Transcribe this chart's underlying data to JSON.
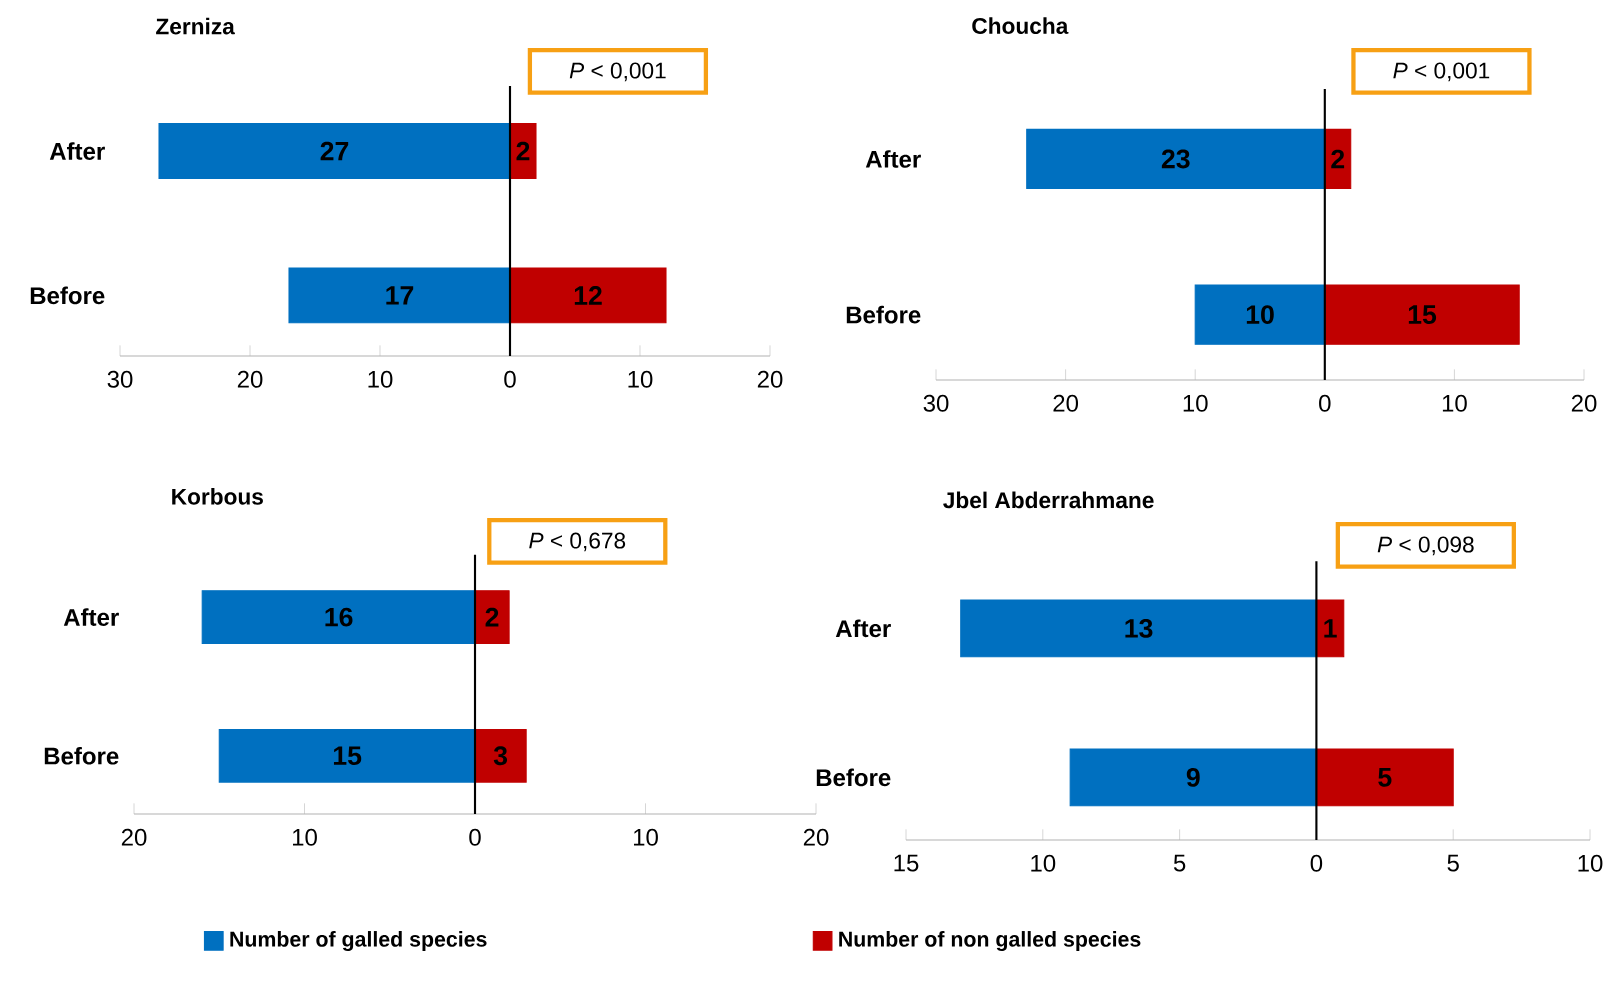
{
  "chart_data": [
    {
      "type": "bar",
      "orientation": "horizontal",
      "title": "Zerniza",
      "categories": [
        "After",
        "Before"
      ],
      "series": [
        {
          "color": "#0070c0",
          "values": [
            27,
            17
          ],
          "base": [
            -27,
            -17
          ],
          "value_labels": [
            "27",
            "17"
          ]
        },
        {
          "color": "#c00000",
          "values": [
            2,
            12
          ],
          "base": [
            0,
            0
          ],
          "value_labels": [
            "2",
            "12"
          ]
        }
      ],
      "xlim": [
        -30,
        20
      ],
      "xticks": [
        {
          "value": -30,
          "label": "30"
        },
        {
          "value": -20,
          "label": "20"
        },
        {
          "value": -10,
          "label": "10"
        },
        0,
        10,
        20
      ],
      "annotations": [
        "*P* < 0,001"
      ]
    },
    {
      "type": "bar",
      "orientation": "horizontal",
      "title": "Choucha",
      "categories": [
        "After",
        "Before"
      ],
      "series": [
        {
          "color": "#0070c0",
          "values": [
            23,
            10
          ],
          "base": [
            -23,
            -10
          ],
          "value_labels": [
            "23",
            "10"
          ]
        },
        {
          "color": "#c00000",
          "values": [
            2,
            15
          ],
          "base": [
            0,
            0
          ],
          "value_labels": [
            "2",
            "15"
          ]
        }
      ],
      "xlim": [
        -30,
        20
      ],
      "xticks": [
        {
          "value": -30,
          "label": "30"
        },
        {
          "value": -20,
          "label": "20"
        },
        {
          "value": -10,
          "label": "10"
        },
        0,
        10,
        20
      ],
      "annotations": [
        "*P* < 0,001"
      ]
    },
    {
      "type": "bar",
      "orientation": "horizontal",
      "title": "Korbous",
      "categories": [
        "After",
        "Before"
      ],
      "series": [
        {
          "name": "Number of galled species",
          "color": "#0070c0",
          "values": [
            16,
            15
          ],
          "base": [
            -16,
            -15
          ],
          "value_labels": [
            "16",
            "15"
          ]
        },
        {
          "name": "Number of  non galled species",
          "color": "#c00000",
          "values": [
            2,
            3
          ],
          "base": [
            0,
            0
          ],
          "value_labels": [
            "2",
            "3"
          ]
        }
      ],
      "xlim": [
        -20,
        20
      ],
      "xticks": [
        {
          "value": -20,
          "label": "20"
        },
        {
          "value": -10,
          "label": "10"
        },
        0,
        10,
        20
      ],
      "annotations": [
        "*P* < 0,678"
      ],
      "legend": "bottom"
    },
    {
      "type": "bar",
      "orientation": "horizontal",
      "title": "Jbel Abderrahmane",
      "categories": [
        "After",
        "Before"
      ],
      "series": [
        {
          "color": "#0070c0",
          "values": [
            13,
            9
          ],
          "base": [
            -13,
            -9
          ],
          "value_labels": [
            "13",
            "9"
          ]
        },
        {
          "color": "#c00000",
          "values": [
            1,
            5
          ],
          "base": [
            0,
            0
          ],
          "value_labels": [
            "1",
            "5"
          ]
        }
      ],
      "xlim": [
        -15,
        10
      ],
      "xticks": [
        {
          "value": -15,
          "label": "15"
        },
        {
          "value": -10,
          "label": "10"
        },
        {
          "value": -5,
          "label": "5"
        },
        0,
        5,
        10
      ],
      "annotations": [
        "*P* < 0,098"
      ]
    }
  ]
}
